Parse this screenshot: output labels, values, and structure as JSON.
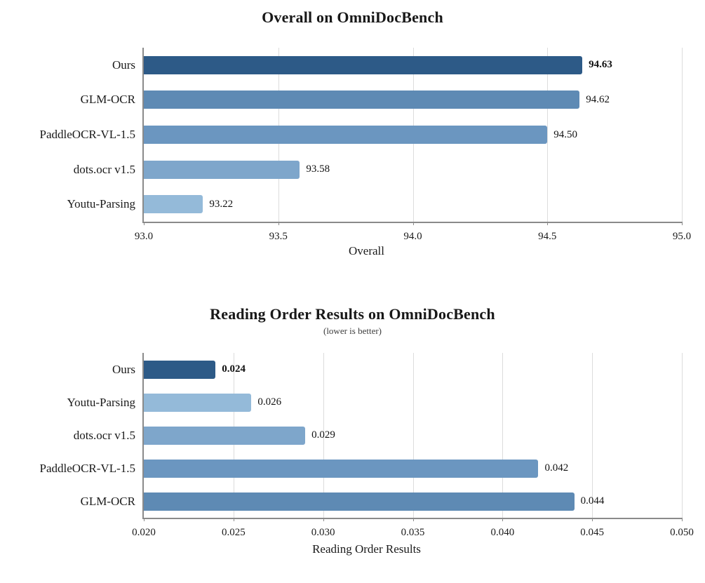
{
  "chart_data": [
    {
      "type": "bar",
      "orientation": "horizontal",
      "title": "Overall on OmniDocBench",
      "xlabel": "Overall",
      "xlim": [
        93.0,
        95.0
      ],
      "xticks": [
        "93.0",
        "93.5",
        "94.0",
        "94.5",
        "95.0"
      ],
      "grid": "vertical",
      "categories": [
        "Ours",
        "GLM-OCR",
        "PaddleOCR-VL-1.5",
        "dots.ocr v1.5",
        "Youtu-Parsing"
      ],
      "values": [
        94.63,
        94.62,
        94.5,
        93.58,
        93.22
      ],
      "value_labels": [
        "94.63",
        "94.62",
        "94.50",
        "93.58",
        "93.22"
      ],
      "bold_value_label": [
        true,
        false,
        false,
        false,
        false
      ],
      "bar_colors": [
        "#2D5A87",
        "#5E8AB4",
        "#6B96C0",
        "#7EA6CB",
        "#94BAD9"
      ]
    },
    {
      "type": "bar",
      "orientation": "horizontal",
      "title": "Reading Order Results on OmniDocBench",
      "subtitle": "(lower is better)",
      "xlabel": "Reading Order Results",
      "xlim": [
        0.02,
        0.05
      ],
      "xticks": [
        "0.020",
        "0.025",
        "0.030",
        "0.035",
        "0.040",
        "0.045",
        "0.050"
      ],
      "grid": "vertical",
      "categories": [
        "Ours",
        "Youtu-Parsing",
        "dots.ocr v1.5",
        "PaddleOCR-VL-1.5",
        "GLM-OCR"
      ],
      "values": [
        0.024,
        0.026,
        0.029,
        0.042,
        0.044
      ],
      "value_labels": [
        "0.024",
        "0.026",
        "0.029",
        "0.042",
        "0.044"
      ],
      "bold_value_label": [
        true,
        false,
        false,
        false,
        false
      ],
      "bar_colors": [
        "#2D5A87",
        "#94BAD9",
        "#7EA6CB",
        "#6B96C0",
        "#5E8AB4"
      ]
    }
  ]
}
